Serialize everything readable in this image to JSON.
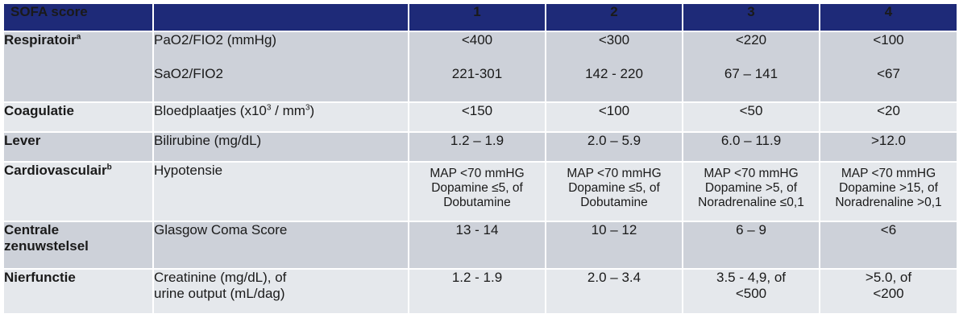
{
  "header": {
    "title": "SOFA score",
    "cols": [
      "1",
      "2",
      "3",
      "4"
    ]
  },
  "rows": {
    "respiratoir": {
      "organ": "Respiratoir",
      "organ_sup": "a",
      "param1": "PaO2/FIO2 (mmHg)",
      "param2": "SaO2/FIO2",
      "v1": [
        "<400",
        "<300",
        "<220",
        "<100"
      ],
      "v2": [
        "221-301",
        "142 - 220",
        "67 – 141",
        "<67"
      ]
    },
    "coagulatie": {
      "organ": "Coagulatie",
      "param_pre": "Bloedplaatjes (x10",
      "param_sup1": "3",
      "param_mid": " / mm",
      "param_sup2": "3",
      "param_post": ")",
      "v": [
        "<150",
        "<100",
        "<50",
        "<20"
      ]
    },
    "lever": {
      "organ": "Lever",
      "param": "Bilirubine (mg/dL)",
      "v": [
        "1.2 – 1.9",
        "2.0 – 5.9",
        "6.0 – 11.9",
        ">12.0"
      ]
    },
    "cardio": {
      "organ": "Cardiovasculair",
      "organ_sup": "b",
      "param": "Hypotensie",
      "v": [
        [
          "MAP <70 mmHG",
          "Dopamine ≤5, of",
          "Dobutamine"
        ],
        [
          "MAP <70 mmHG",
          "Dopamine ≤5, of",
          "Dobutamine"
        ],
        [
          "MAP <70 mmHG",
          "Dopamine >5, of",
          "Noradrenaline ≤0,1"
        ],
        [
          "MAP <70 mmHG",
          "Dopamine >15, of",
          "Noradrenaline >0,1"
        ]
      ]
    },
    "cns": {
      "organ_line1": "Centrale",
      "organ_line2": "zenuwstelsel",
      "param": "Glasgow Coma Score",
      "v": [
        "13 - 14",
        "10 – 12",
        "6 – 9",
        "<6"
      ]
    },
    "nier": {
      "organ": "Nierfunctie",
      "param_line1": "Creatinine (mg/dL), of",
      "param_line2": "urine output (mL/dag)",
      "v": [
        [
          "1.2 - 1.9"
        ],
        [
          "2.0 – 3.4"
        ],
        [
          "3.5 - 4,9, of",
          "<500"
        ],
        [
          ">5.0, of",
          "<200"
        ]
      ]
    }
  }
}
